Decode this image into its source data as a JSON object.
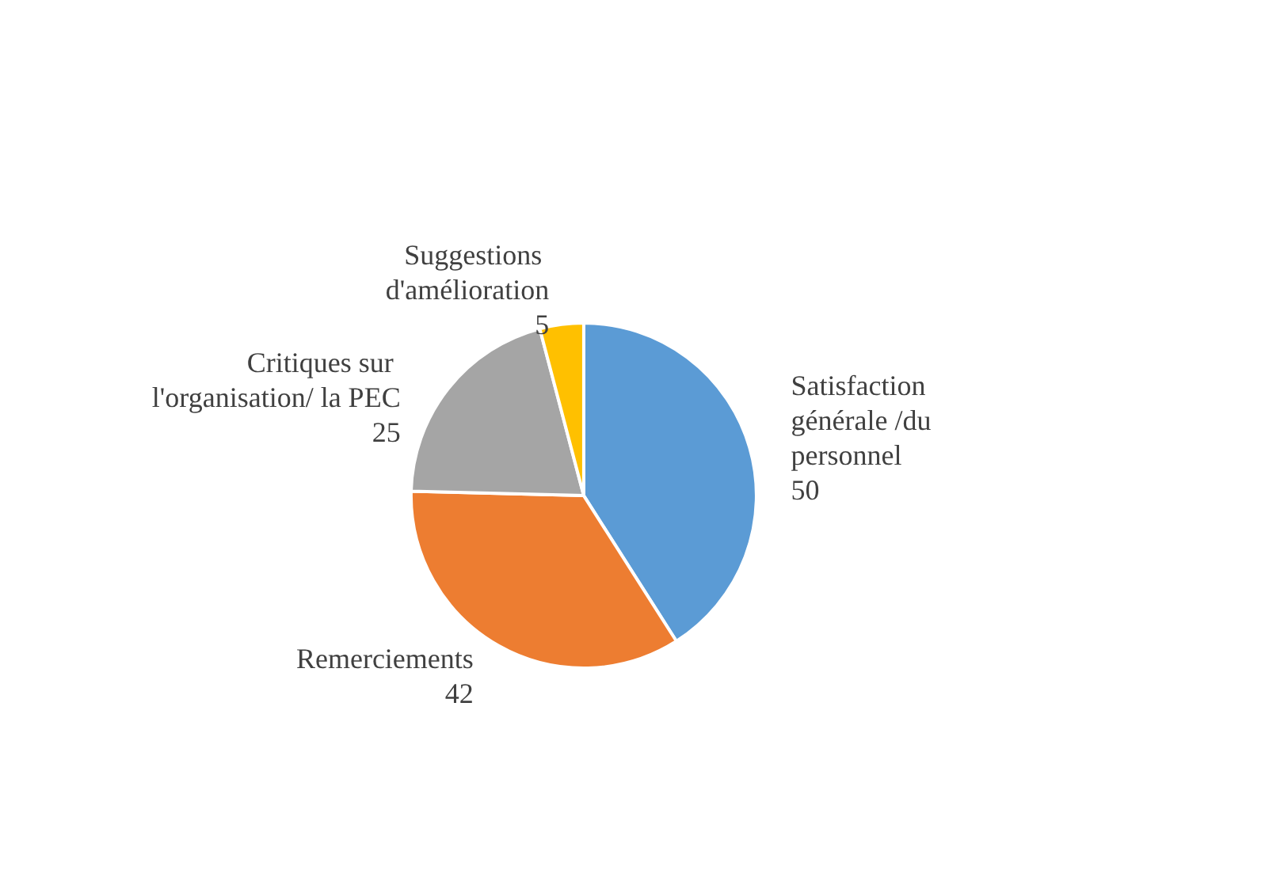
{
  "chart_data": {
    "type": "pie",
    "categories": [
      "Satisfaction générale /du personnel",
      "Remerciements",
      "Critiques sur l'organisation/ la PEC",
      "Suggestions d'amélioration"
    ],
    "values": [
      50,
      42,
      25,
      5
    ],
    "colors": [
      "#5b9bd5",
      "#ed7d31",
      "#a5a5a5",
      "#ffc000"
    ],
    "data_labels": true
  }
}
